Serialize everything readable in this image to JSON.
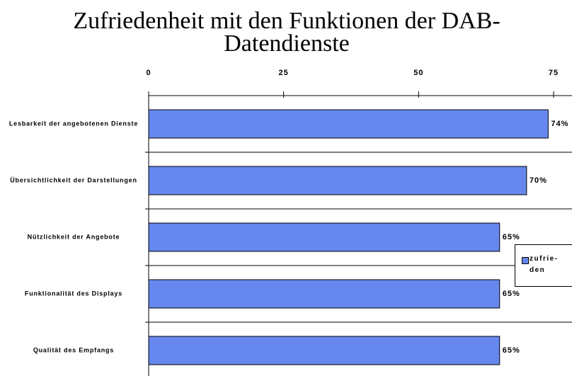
{
  "chart_data": {
    "type": "bar",
    "orientation": "horizontal",
    "title": "Zufriedenheit mit den Funktionen der DAB-Datendienste",
    "categories": [
      "Lesbarkeit der angebotenen Dienste",
      "Übersichtlichkeit der Darstellungen",
      "Nützlichkeit der Angebote",
      "Funktionalität des Displays",
      "Qualität des Empfangs"
    ],
    "series": [
      {
        "name": "zufrie-den",
        "color": "#6688ee",
        "values": [
          74,
          70,
          65,
          65,
          65
        ],
        "value_labels": [
          "74%",
          "70%",
          "65%",
          "65%",
          "65%"
        ]
      }
    ],
    "xlim": [
      0,
      75
    ],
    "xticks": [
      0,
      25,
      50,
      75
    ],
    "grid": true,
    "legend": "right"
  }
}
